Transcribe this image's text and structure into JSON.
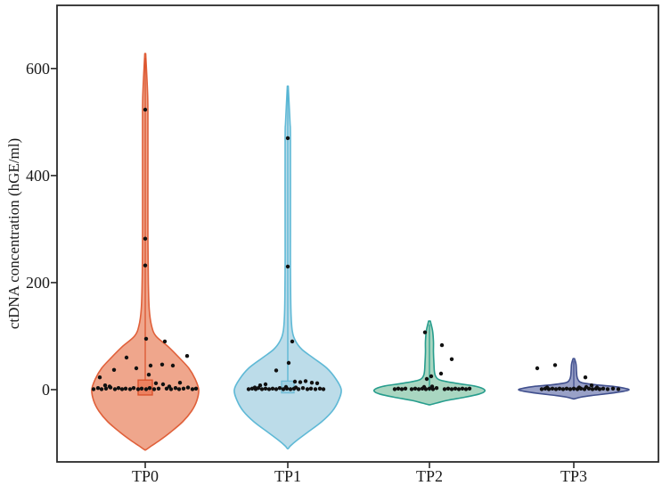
{
  "chart_data": {
    "type": "violin",
    "title": "",
    "xlabel": "",
    "ylabel": "ctDNA concentration (hGE/ml)",
    "categories": [
      "TP0",
      "TP1",
      "TP2",
      "TP3"
    ],
    "yticks": [
      0,
      200,
      400,
      600
    ],
    "ylim": [
      -135,
      718
    ],
    "grid": false,
    "legend": "none",
    "background": "#ffffff",
    "frame_color": "#2a2a2a",
    "point_color": "#111111",
    "groups": [
      {
        "name": "TP0",
        "fill": "#efa68c",
        "stroke": "#e0603a",
        "max_value": 628,
        "min_value": -112,
        "outline": [
          [
            628,
            0.5
          ],
          [
            560,
            2.5
          ],
          [
            520,
            3
          ],
          [
            400,
            3
          ],
          [
            283,
            3
          ],
          [
            200,
            3.5
          ],
          [
            150,
            4.5
          ],
          [
            120,
            7
          ],
          [
            100,
            12
          ],
          [
            80,
            26
          ],
          [
            60,
            38
          ],
          [
            40,
            49
          ],
          [
            20,
            56
          ],
          [
            0,
            60
          ],
          [
            -20,
            58
          ],
          [
            -40,
            52
          ],
          [
            -60,
            42
          ],
          [
            -80,
            28
          ],
          [
            -95,
            16
          ],
          [
            -105,
            7
          ],
          [
            -112,
            1
          ]
        ],
        "box": {
          "lo": -10,
          "hi": 18,
          "half_width": 8,
          "fill": "#ec8160",
          "stroke": "#d94f28"
        },
        "stem": {
          "top": 620,
          "bottom": 18,
          "color": "#d94f28"
        },
        "points": [
          [
            0,
            523
          ],
          [
            0,
            282
          ],
          [
            0,
            232
          ],
          [
            1,
            95
          ],
          [
            22,
            90
          ],
          [
            47,
            63
          ],
          [
            -21,
            60
          ],
          [
            6,
            45
          ],
          [
            19,
            47
          ],
          [
            31,
            45
          ],
          [
            -10,
            40
          ],
          [
            -35,
            37
          ],
          [
            -51,
            23
          ],
          [
            4,
            28
          ],
          [
            12,
            12
          ],
          [
            20,
            10
          ],
          [
            39,
            13
          ],
          [
            27,
            6
          ],
          [
            -45,
            8
          ],
          [
            -40,
            6
          ],
          [
            -58,
            1
          ],
          [
            -53,
            3
          ],
          [
            -49,
            1
          ],
          [
            -44,
            2
          ],
          [
            -39,
            4
          ],
          [
            -34,
            1
          ],
          [
            -30,
            3
          ],
          [
            -26,
            1
          ],
          [
            -22,
            2
          ],
          [
            -17,
            1
          ],
          [
            -13,
            3
          ],
          [
            -8,
            1
          ],
          [
            -4,
            2
          ],
          [
            1,
            1
          ],
          [
            5,
            3
          ],
          [
            10,
            1
          ],
          [
            15,
            2
          ],
          [
            24,
            2
          ],
          [
            29,
            1
          ],
          [
            34,
            3
          ],
          [
            38,
            1
          ],
          [
            43,
            2
          ],
          [
            48,
            4
          ],
          [
            53,
            1
          ],
          [
            57,
            2
          ]
        ]
      },
      {
        "name": "TP1",
        "fill": "#bcdce9",
        "stroke": "#5fb9d6",
        "max_value": 567,
        "min_value": -110,
        "outline": [
          [
            567,
            0.5
          ],
          [
            500,
            2.5
          ],
          [
            470,
            3
          ],
          [
            300,
            3
          ],
          [
            230,
            3
          ],
          [
            150,
            3.5
          ],
          [
            110,
            5
          ],
          [
            90,
            9
          ],
          [
            75,
            16
          ],
          [
            60,
            28
          ],
          [
            40,
            44
          ],
          [
            20,
            54
          ],
          [
            0,
            60
          ],
          [
            -20,
            57
          ],
          [
            -40,
            50
          ],
          [
            -60,
            38
          ],
          [
            -80,
            22
          ],
          [
            -95,
            10
          ],
          [
            -105,
            3
          ],
          [
            -110,
            0.5
          ]
        ],
        "box": {
          "lo": -6,
          "hi": 16,
          "half_width": 7,
          "fill": "#9fd0e2",
          "stroke": "#6fbcd6"
        },
        "stem": {
          "top": 560,
          "bottom": 16,
          "color": "#4fb2d2"
        },
        "points": [
          [
            0,
            470
          ],
          [
            0,
            230
          ],
          [
            5,
            90
          ],
          [
            1,
            50
          ],
          [
            -13,
            36
          ],
          [
            8,
            15
          ],
          [
            14,
            14
          ],
          [
            20,
            16
          ],
          [
            27,
            13
          ],
          [
            33,
            12
          ],
          [
            -25,
            10
          ],
          [
            -31,
            8
          ],
          [
            -44,
            1
          ],
          [
            -40,
            2
          ],
          [
            -36,
            1
          ],
          [
            -33,
            3
          ],
          [
            -29,
            1
          ],
          [
            -25,
            2
          ],
          [
            -21,
            1
          ],
          [
            -17,
            2
          ],
          [
            -13,
            1
          ],
          [
            -9,
            3
          ],
          [
            -5,
            1
          ],
          [
            -1,
            2
          ],
          [
            3,
            1
          ],
          [
            7,
            2
          ],
          [
            12,
            1
          ],
          [
            17,
            3
          ],
          [
            22,
            1
          ],
          [
            26,
            2
          ],
          [
            31,
            1
          ],
          [
            36,
            2
          ],
          [
            40,
            1
          ],
          [
            -37,
            4
          ],
          [
            9,
            4
          ],
          [
            -2,
            5
          ]
        ]
      },
      {
        "name": "TP2",
        "fill": "#a9d6c1",
        "stroke": "#279d8d",
        "max_value": 128,
        "min_value": -28,
        "outline": [
          [
            128,
            1
          ],
          [
            110,
            3.5
          ],
          [
            90,
            4.5
          ],
          [
            70,
            4.5
          ],
          [
            50,
            5
          ],
          [
            35,
            5.5
          ],
          [
            25,
            7
          ],
          [
            18,
            12
          ],
          [
            12,
            30
          ],
          [
            7,
            50
          ],
          [
            2,
            60
          ],
          [
            -3,
            62
          ],
          [
            -8,
            56
          ],
          [
            -14,
            40
          ],
          [
            -20,
            20
          ],
          [
            -25,
            8
          ],
          [
            -28,
            1
          ]
        ],
        "box": null,
        "stem": {
          "top": 122,
          "bottom": -3,
          "color": "#1f9e8c"
        },
        "points": [
          [
            -5,
            107
          ],
          [
            14,
            83
          ],
          [
            25,
            57
          ],
          [
            13,
            30
          ],
          [
            2,
            25
          ],
          [
            -3,
            20
          ],
          [
            -39,
            1
          ],
          [
            -35,
            2
          ],
          [
            -31,
            1
          ],
          [
            -27,
            2
          ],
          [
            -20,
            1
          ],
          [
            -16,
            2
          ],
          [
            -12,
            1
          ],
          [
            -8,
            2
          ],
          [
            -4,
            1
          ],
          [
            0,
            2
          ],
          [
            4,
            1
          ],
          [
            8,
            3
          ],
          [
            17,
            1
          ],
          [
            21,
            2
          ],
          [
            25,
            1
          ],
          [
            29,
            2
          ],
          [
            33,
            1
          ],
          [
            37,
            2
          ],
          [
            41,
            1
          ],
          [
            45,
            2
          ],
          [
            -6,
            5
          ],
          [
            3,
            6
          ]
        ]
      },
      {
        "name": "TP3",
        "fill": "#99a1c7",
        "stroke": "#41508e",
        "max_value": 58,
        "min_value": -17,
        "outline": [
          [
            58,
            0.8
          ],
          [
            48,
            2.5
          ],
          [
            35,
            3
          ],
          [
            25,
            3.5
          ],
          [
            18,
            5
          ],
          [
            13,
            9
          ],
          [
            9,
            25
          ],
          [
            6,
            45
          ],
          [
            3,
            56
          ],
          [
            0,
            62
          ],
          [
            -3,
            56
          ],
          [
            -7,
            40
          ],
          [
            -11,
            20
          ],
          [
            -14,
            8
          ],
          [
            -17,
            1
          ]
        ],
        "box": null,
        "stem": {
          "top": 54,
          "bottom": -3,
          "color": "#3b4a8b"
        },
        "points": [
          [
            -41,
            40
          ],
          [
            -21,
            46
          ],
          [
            13,
            23
          ],
          [
            14,
            5
          ],
          [
            20,
            8
          ],
          [
            -36,
            1
          ],
          [
            -32,
            2
          ],
          [
            -28,
            1
          ],
          [
            -24,
            2
          ],
          [
            -20,
            1
          ],
          [
            -16,
            2
          ],
          [
            -12,
            1
          ],
          [
            -8,
            2
          ],
          [
            -4,
            1
          ],
          [
            0,
            2
          ],
          [
            4,
            1
          ],
          [
            8,
            2
          ],
          [
            12,
            1
          ],
          [
            17,
            2
          ],
          [
            21,
            1
          ],
          [
            25,
            2
          ],
          [
            29,
            1
          ],
          [
            33,
            2
          ],
          [
            -30,
            4
          ],
          [
            6,
            4
          ],
          [
            26,
            4
          ],
          [
            38,
            1
          ],
          [
            44,
            2
          ],
          [
            50,
            1
          ]
        ]
      }
    ]
  }
}
